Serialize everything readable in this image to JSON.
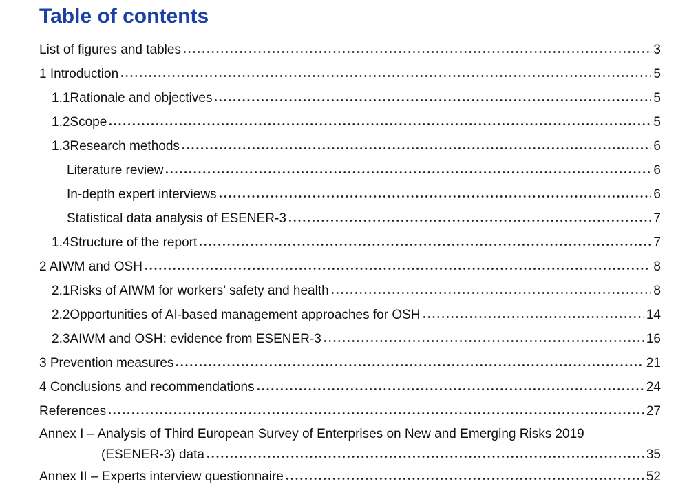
{
  "page": {
    "title": "Table of contents",
    "title_color": "#1b41a5",
    "text_color": "#111111",
    "background_color": "#ffffff"
  },
  "toc": {
    "entries": [
      {
        "level": 0,
        "label": "List of figures and tables",
        "page": "3"
      },
      {
        "level": 0,
        "label": "1 Introduction",
        "page": "5"
      },
      {
        "level": 1,
        "number": "1.1",
        "label": "Rationale and objectives",
        "page": "5"
      },
      {
        "level": 1,
        "number": "1.2",
        "label": "Scope",
        "page": "5"
      },
      {
        "level": 1,
        "number": "1.3",
        "label": "Research methods",
        "page": "6"
      },
      {
        "level": 2,
        "label": "Literature review",
        "page": "6"
      },
      {
        "level": 2,
        "label": "In-depth expert interviews",
        "page": "6"
      },
      {
        "level": 2,
        "label": "Statistical data analysis of ESENER-3",
        "page": "7"
      },
      {
        "level": 1,
        "number": "1.4",
        "label": "Structure of the report",
        "page": "7"
      },
      {
        "level": 0,
        "label": "2 AIWM and OSH",
        "page": "8"
      },
      {
        "level": 1,
        "number": "2.1",
        "label": "Risks of AIWM for workers’ safety and health",
        "page": "8"
      },
      {
        "level": 1,
        "number": "2.2",
        "label": "Opportunities of AI-based management approaches for OSH",
        "page": "14"
      },
      {
        "level": 1,
        "number": "2.3",
        "label": "AIWM and OSH: evidence from ESENER-3",
        "page": "16"
      },
      {
        "level": 0,
        "label": "3 Prevention measures",
        "page": "21"
      },
      {
        "level": 0,
        "label": "4 Conclusions and recommendations",
        "page": "24"
      },
      {
        "level": 0,
        "label": "References",
        "page": "27"
      },
      {
        "level": 0,
        "wrap": true,
        "label": "Annex I – Analysis of Third European Survey of Enterprises on New and Emerging Risks 2019",
        "label2": "(ESENER-3) data",
        "page": "35"
      },
      {
        "level": 0,
        "label": "Annex II – Experts interview questionnaire",
        "page": "52"
      }
    ]
  }
}
